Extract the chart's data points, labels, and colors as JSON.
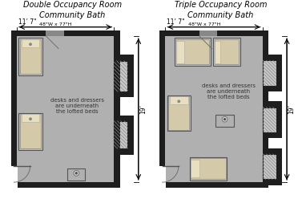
{
  "bg_color": "#ffffff",
  "wall_color": "#1e1e1e",
  "floor_color": "#b0b0b0",
  "bed_frame_color": "#c0c0c0",
  "bed_mattress_color": "#d4c9a8",
  "pillow_color": "#e8dfc0",
  "sink_color": "#d0d0d0",
  "closet_bg": "#c8c8c8",
  "title_double": "Double Occupancy Room\nCommunity Bath",
  "title_triple": "Triple Occupancy Room\nCommunity Bath",
  "dim_width": "11’ 7\"",
  "dim_height": "19’",
  "dim_bed": "48\"W x 77\"H",
  "note_text": "desks and dressers\nare underneath\nthe lofted beds",
  "wt": 0.18,
  "rw": 3.0,
  "rh": 4.5
}
